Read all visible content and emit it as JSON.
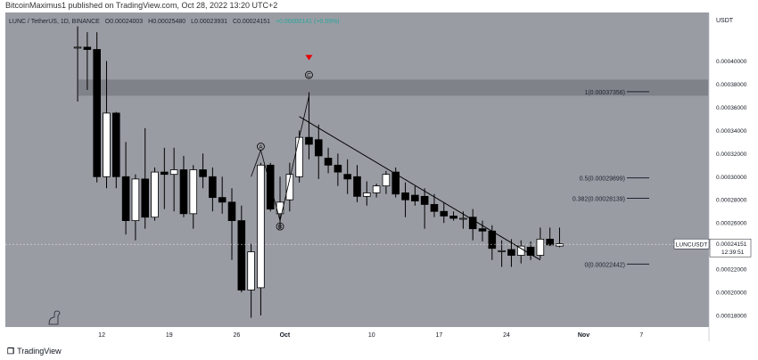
{
  "header": {
    "published": "BitcoinMaximus1 published on TradingView.com, Oct 28, 2022 13:20 UTC+2"
  },
  "legend": {
    "symbol": "LUNC / TetherUS, 1D, BINANCE",
    "open": "O0.00024003",
    "high": "H0.00025480",
    "low": "L0.00023931",
    "close": "C0.00024151",
    "change": "+0.00000141 (+0.59%)",
    "change_color": "#26a69a"
  },
  "axis": {
    "currency": "USDT"
  },
  "price_tag": {
    "symbol": "LUNCUSDT",
    "price": "0.00024151",
    "countdown": "12:39:51"
  },
  "footer": {
    "brand": "TradingView"
  },
  "colors": {
    "plot_bg": "#9a9ca4",
    "candle_up": "#ffffff",
    "candle_down": "#000000",
    "resistance_zone": "#6f7178",
    "sell_arrow": "#e60000"
  },
  "chart_data": {
    "type": "candlestick",
    "y_axis_ticks": [
      "0.00040000",
      "0.00038000",
      "0.00036000",
      "0.00034000",
      "0.00032000",
      "0.00030000",
      "0.00028000",
      "0.00026000",
      "0.00024000",
      "0.00022000",
      "0.00020000",
      "0.00018000"
    ],
    "x_ticks": [
      {
        "label": "12",
        "x": "2022-09-12"
      },
      {
        "label": "19",
        "x": "2022-09-19"
      },
      {
        "label": "26",
        "x": "2022-09-26"
      },
      {
        "label": "Oct",
        "x": "2022-10-01"
      },
      {
        "label": "10",
        "x": "2022-10-10"
      },
      {
        "label": "17",
        "x": "2022-10-17"
      },
      {
        "label": "24",
        "x": "2022-10-24"
      },
      {
        "label": "Nov",
        "x": "2022-11-01"
      },
      {
        "label": "7",
        "x": "2022-11-07"
      }
    ],
    "x_range": [
      "2022-09-02",
      "2022-11-14"
    ],
    "candles": [
      {
        "date": "2022-09-09",
        "o": 0.000412,
        "h": 0.00043,
        "l": 0.000365,
        "c": 0.000412
      },
      {
        "date": "2022-09-10",
        "o": 0.000412,
        "h": 0.000425,
        "l": 0.000375,
        "c": 0.00041
      },
      {
        "date": "2022-09-11",
        "o": 0.00041,
        "h": 0.000425,
        "l": 0.000295,
        "c": 0.0003
      },
      {
        "date": "2022-09-12",
        "o": 0.0003,
        "h": 0.0004,
        "l": 0.00029,
        "c": 0.000355
      },
      {
        "date": "2022-09-13",
        "o": 0.000355,
        "h": 0.000356,
        "l": 0.00029,
        "c": 0.0003
      },
      {
        "date": "2022-09-14",
        "o": 0.0003,
        "h": 0.00033,
        "l": 0.00025,
        "c": 0.000262
      },
      {
        "date": "2022-09-15",
        "o": 0.000262,
        "h": 0.000302,
        "l": 0.000245,
        "c": 0.000298
      },
      {
        "date": "2022-09-16",
        "o": 0.000298,
        "h": 0.000342,
        "l": 0.000255,
        "c": 0.000265
      },
      {
        "date": "2022-09-17",
        "o": 0.000265,
        "h": 0.000308,
        "l": 0.000262,
        "c": 0.000304
      },
      {
        "date": "2022-09-18",
        "o": 0.000304,
        "h": 0.000325,
        "l": 0.000272,
        "c": 0.000302
      },
      {
        "date": "2022-09-19",
        "o": 0.000302,
        "h": 0.000325,
        "l": 0.00027,
        "c": 0.000306
      },
      {
        "date": "2022-09-20",
        "o": 0.000306,
        "h": 0.000318,
        "l": 0.000265,
        "c": 0.000268
      },
      {
        "date": "2022-09-21",
        "o": 0.000268,
        "h": 0.00031,
        "l": 0.000255,
        "c": 0.000306
      },
      {
        "date": "2022-09-22",
        "o": 0.000306,
        "h": 0.00032,
        "l": 0.00029,
        "c": 0.0003
      },
      {
        "date": "2022-09-23",
        "o": 0.0003,
        "h": 0.000308,
        "l": 0.00027,
        "c": 0.000282
      },
      {
        "date": "2022-09-24",
        "o": 0.000282,
        "h": 0.0003,
        "l": 0.000268,
        "c": 0.000278
      },
      {
        "date": "2022-09-25",
        "o": 0.000278,
        "h": 0.00029,
        "l": 0.000228,
        "c": 0.000262
      },
      {
        "date": "2022-09-26",
        "o": 0.000262,
        "h": 0.000275,
        "l": 0.0002,
        "c": 0.000202
      },
      {
        "date": "2022-09-27",
        "o": 0.000202,
        "h": 0.000242,
        "l": 0.000178,
        "c": 0.000235
      },
      {
        "date": "2022-09-28",
        "o": 0.000204,
        "h": 0.000312,
        "l": 0.00018,
        "c": 0.00031
      },
      {
        "date": "2022-09-29",
        "o": 0.00031,
        "h": 0.000312,
        "l": 0.00027,
        "c": 0.000272
      },
      {
        "date": "2022-09-30",
        "o": 0.000268,
        "h": 0.0003,
        "l": 0.000255,
        "c": 0.000278
      },
      {
        "date": "2022-10-01",
        "o": 0.00028,
        "h": 0.000312,
        "l": 0.00027,
        "c": 0.000302
      },
      {
        "date": "2022-10-02",
        "o": 0.0003,
        "h": 0.00034,
        "l": 0.000295,
        "c": 0.000334
      },
      {
        "date": "2022-10-03",
        "o": 0.000334,
        "h": 0.000373,
        "l": 0.000315,
        "c": 0.000328
      },
      {
        "date": "2022-10-04",
        "o": 0.000332,
        "h": 0.000345,
        "l": 0.000298,
        "c": 0.000318
      },
      {
        "date": "2022-10-05",
        "o": 0.000316,
        "h": 0.000325,
        "l": 0.000303,
        "c": 0.00031
      },
      {
        "date": "2022-10-06",
        "o": 0.00031,
        "h": 0.00032,
        "l": 0.000292,
        "c": 0.000304
      },
      {
        "date": "2022-10-07",
        "o": 0.000302,
        "h": 0.000315,
        "l": 0.000285,
        "c": 0.000298
      },
      {
        "date": "2022-10-08",
        "o": 0.0003,
        "h": 0.00031,
        "l": 0.000278,
        "c": 0.000283
      },
      {
        "date": "2022-10-09",
        "o": 0.000283,
        "h": 0.000296,
        "l": 0.000275,
        "c": 0.000286
      },
      {
        "date": "2022-10-10",
        "o": 0.000286,
        "h": 0.000294,
        "l": 0.000282,
        "c": 0.000292
      },
      {
        "date": "2022-10-11",
        "o": 0.000292,
        "h": 0.000305,
        "l": 0.000285,
        "c": 0.000302
      },
      {
        "date": "2022-10-12",
        "o": 0.000304,
        "h": 0.000308,
        "l": 0.000282,
        "c": 0.000285
      },
      {
        "date": "2022-10-13",
        "o": 0.000286,
        "h": 0.000295,
        "l": 0.000265,
        "c": 0.00028
      },
      {
        "date": "2022-10-14",
        "o": 0.000284,
        "h": 0.000292,
        "l": 0.000275,
        "c": 0.000279
      },
      {
        "date": "2022-10-15",
        "o": 0.000283,
        "h": 0.00029,
        "l": 0.000255,
        "c": 0.000276
      },
      {
        "date": "2022-10-16",
        "o": 0.000276,
        "h": 0.000285,
        "l": 0.000265,
        "c": 0.00027
      },
      {
        "date": "2022-10-17",
        "o": 0.00027,
        "h": 0.000278,
        "l": 0.00026,
        "c": 0.000266
      },
      {
        "date": "2022-10-18",
        "o": 0.000266,
        "h": 0.00027,
        "l": 0.000262,
        "c": 0.000264
      },
      {
        "date": "2022-10-19",
        "o": 0.000264,
        "h": 0.00027,
        "l": 0.000255,
        "c": 0.000264
      },
      {
        "date": "2022-10-20",
        "o": 0.000265,
        "h": 0.000272,
        "l": 0.000245,
        "c": 0.000255
      },
      {
        "date": "2022-10-21",
        "o": 0.000255,
        "h": 0.000262,
        "l": 0.000244,
        "c": 0.000253
      },
      {
        "date": "2022-10-22",
        "o": 0.000253,
        "h": 0.000258,
        "l": 0.000228,
        "c": 0.000238
      },
      {
        "date": "2022-10-23",
        "o": 0.000236,
        "h": 0.000245,
        "l": 0.000222,
        "c": 0.000236
      },
      {
        "date": "2022-10-24",
        "o": 0.000237,
        "h": 0.000246,
        "l": 0.000222,
        "c": 0.000232
      },
      {
        "date": "2022-10-25",
        "o": 0.000232,
        "h": 0.000245,
        "l": 0.000225,
        "c": 0.00024
      },
      {
        "date": "2022-10-26",
        "o": 0.000239,
        "h": 0.000244,
        "l": 0.000228,
        "c": 0.000232
      },
      {
        "date": "2022-10-27",
        "o": 0.000232,
        "h": 0.000256,
        "l": 0.000229,
        "c": 0.000246
      },
      {
        "date": "2022-10-28",
        "o": 0.000246,
        "h": 0.000256,
        "l": 0.00024,
        "c": 0.000241
      },
      {
        "date": "2022-10-29",
        "o": 0.00024,
        "h": 0.000256,
        "l": 0.000239,
        "c": 0.000242
      }
    ],
    "resistance_zone": {
      "from": 0.00037,
      "to": 0.000384
    },
    "fib_levels": [
      {
        "label": "1(0.00037356)",
        "value": 0.00037356
      },
      {
        "label": "0.5(0.00029899)",
        "value": 0.00029899
      },
      {
        "label": "0.382(0.00028139)",
        "value": 0.00028139
      },
      {
        "label": "0(0.00022442)",
        "value": 0.00022442
      }
    ],
    "trendline": [
      {
        "date": "2022-10-02",
        "value": 0.000352
      },
      {
        "date": "2022-10-27",
        "value": 0.000228
      }
    ],
    "wave_path": [
      {
        "date": "2022-09-27",
        "value": 0.0003
      },
      {
        "date": "2022-09-28",
        "value": 0.000323
      },
      {
        "date": "2022-09-30",
        "value": 0.000262
      },
      {
        "date": "2022-10-03",
        "value": 0.00037
      }
    ],
    "wave_labels": [
      {
        "text": "A",
        "date": "2022-09-28",
        "value": 0.000326
      },
      {
        "text": "B",
        "date": "2022-09-30",
        "value": 0.000257
      },
      {
        "text": "C",
        "date": "2022-10-03",
        "value": 0.000388
      }
    ],
    "sell_marker": {
      "date": "2022-10-03",
      "value": 0.000403
    },
    "last_price": 0.00024151
  }
}
